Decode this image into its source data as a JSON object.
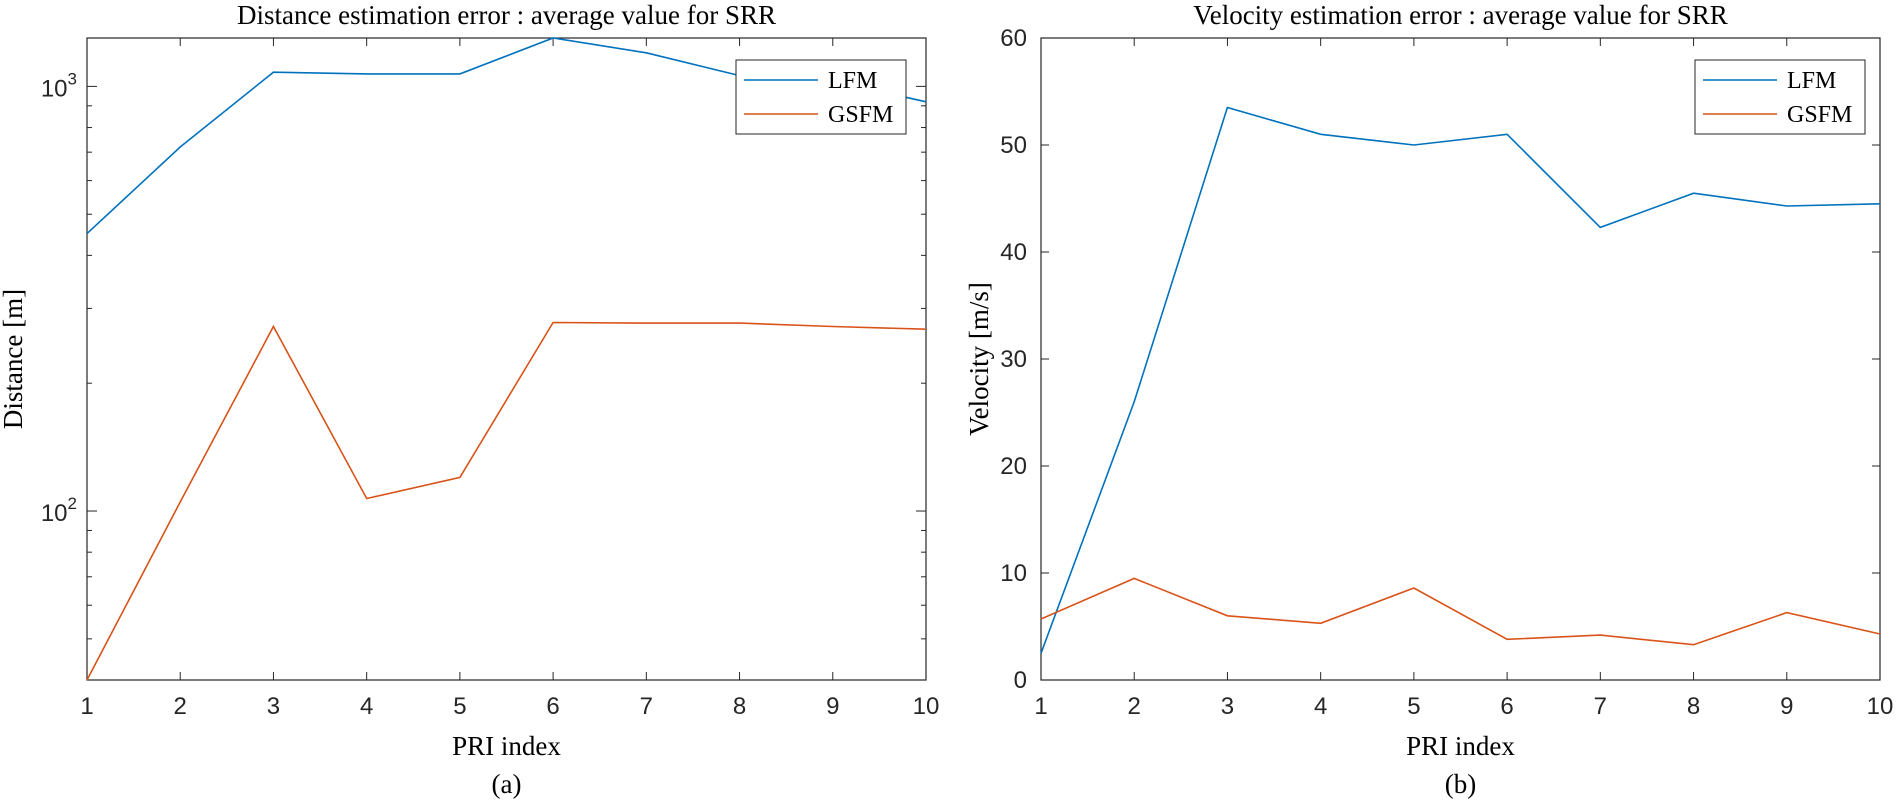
{
  "chart_data": [
    {
      "id": "a",
      "type": "line",
      "title": "Distance estimation error : average value for SRR",
      "xlabel": "PRI index",
      "ylabel": "Distance [m]",
      "caption": "(a)",
      "yscale": "log",
      "xlim": [
        1,
        10
      ],
      "ylim": [
        40,
        1300
      ],
      "x_ticks": [
        "1",
        "2",
        "3",
        "4",
        "5",
        "6",
        "7",
        "8",
        "9",
        "10"
      ],
      "y_ticks": [
        {
          "value": 100,
          "base": "10",
          "exp": "2"
        },
        {
          "value": 1000,
          "base": "10",
          "exp": "3"
        }
      ],
      "grid": false,
      "legend_position": "top-right",
      "x": [
        1,
        2,
        3,
        4,
        5,
        6,
        7,
        8,
        9,
        10
      ],
      "series": [
        {
          "name": "LFM",
          "color": "#0072BD",
          "values": [
            450,
            720,
            1080,
            1070,
            1070,
            1300,
            1200,
            1060,
            1030,
            920
          ]
        },
        {
          "name": "GSFM",
          "color": "#D95319",
          "values": [
            40,
            105,
            272,
            107,
            120,
            278,
            277,
            277,
            272,
            268
          ]
        }
      ]
    },
    {
      "id": "b",
      "type": "line",
      "title": "Velocity estimation error : average value for SRR",
      "xlabel": "PRI index",
      "ylabel": "Velocity [m/s]",
      "caption": "(b)",
      "yscale": "linear",
      "xlim": [
        1,
        10
      ],
      "ylim": [
        0,
        60
      ],
      "x_ticks": [
        "1",
        "2",
        "3",
        "4",
        "5",
        "6",
        "7",
        "8",
        "9",
        "10"
      ],
      "y_ticks": [
        "0",
        "10",
        "20",
        "30",
        "40",
        "50",
        "60"
      ],
      "grid": false,
      "legend_position": "top-right",
      "x": [
        1,
        2,
        3,
        4,
        5,
        6,
        7,
        8,
        9,
        10
      ],
      "series": [
        {
          "name": "LFM",
          "color": "#0072BD",
          "values": [
            2.5,
            26,
            53.5,
            51,
            50,
            51,
            42.3,
            45.5,
            44.3,
            44.5
          ]
        },
        {
          "name": "GSFM",
          "color": "#D95319",
          "values": [
            5.7,
            9.5,
            6,
            5.3,
            8.6,
            3.8,
            4.2,
            3.3,
            6.3,
            4.3
          ]
        }
      ]
    }
  ]
}
